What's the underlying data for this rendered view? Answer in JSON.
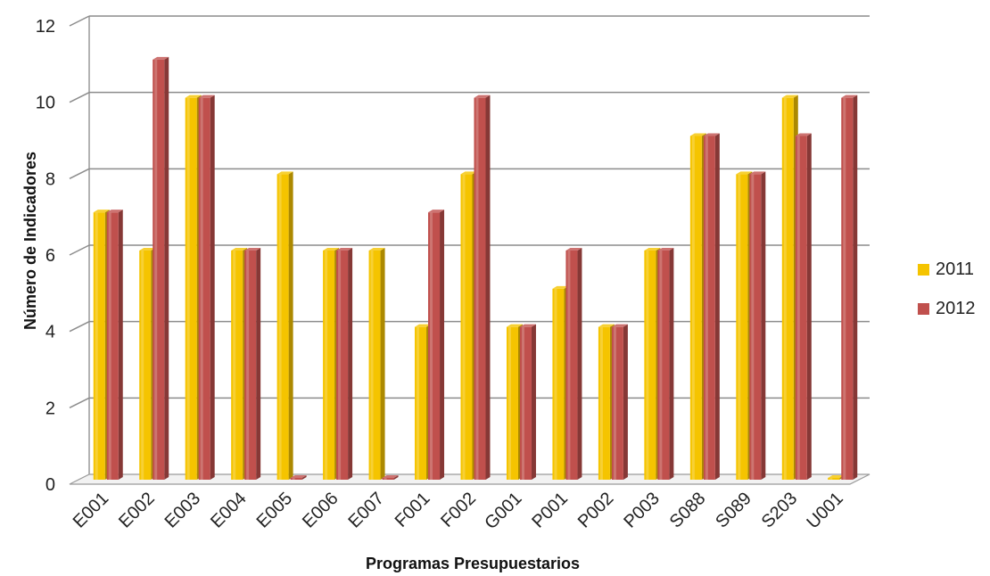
{
  "chart_data": {
    "type": "bar",
    "categories": [
      "E001",
      "E002",
      "E003",
      "E004",
      "E005",
      "E006",
      "E007",
      "F001",
      "F002",
      "G001",
      "P001",
      "P002",
      "P003",
      "S088",
      "S089",
      "S203",
      "U001"
    ],
    "series": [
      {
        "name": "2011",
        "color": "#f5c400",
        "values": [
          7,
          6,
          10,
          6,
          8,
          6,
          6,
          4,
          8,
          4,
          5,
          4,
          6,
          9,
          8,
          10,
          0
        ]
      },
      {
        "name": "2012",
        "color": "#c0504d",
        "values": [
          7,
          11,
          10,
          6,
          0,
          6,
          0,
          7,
          10,
          4,
          6,
          4,
          6,
          9,
          8,
          9,
          10
        ]
      }
    ],
    "xlabel": "Programas Presupuestarios",
    "ylabel": "Número de Indicadores",
    "ylim": [
      0,
      12
    ],
    "yticks": [
      0,
      2,
      4,
      6,
      8,
      10,
      12
    ],
    "grid": true,
    "legend": "right"
  }
}
